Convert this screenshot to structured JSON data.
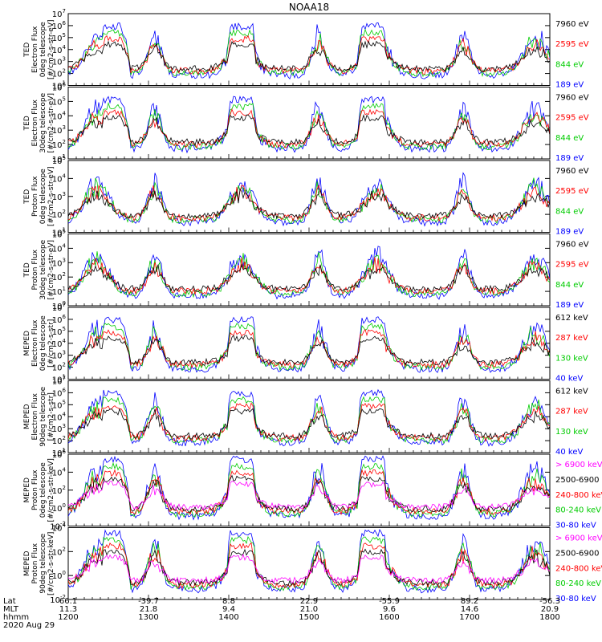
{
  "title": "NOAA18",
  "date_label": "2020 Aug 29",
  "colors": {
    "blue": "#0000ff",
    "red": "#ff0000",
    "green": "#00cc00",
    "black": "#000000",
    "magenta": "#ff00ff"
  },
  "axis_footer": {
    "row_labels": [
      "Lat",
      "MLT",
      "hhmm"
    ],
    "ticks": [
      {
        "lat": "66.1",
        "mlt": "11.3",
        "hhmm": "1200"
      },
      {
        "lat": "-39.7",
        "mlt": "21.8",
        "hhmm": "1300"
      },
      {
        "lat": "8.8",
        "mlt": "9.4",
        "hhmm": "1400"
      },
      {
        "lat": "22.9",
        "mlt": "21.0",
        "hhmm": "1500"
      },
      {
        "lat": "-55.9",
        "mlt": "9.6",
        "hhmm": "1600"
      },
      {
        "lat": "89.2",
        "mlt": "14.6",
        "hhmm": "1700"
      },
      {
        "lat": "-56.3",
        "mlt": "20.9",
        "hhmm": "1800"
      }
    ]
  },
  "chart_data": [
    {
      "type": "line",
      "ylabel": [
        "TED",
        "Electron Flux",
        "0deg telescope",
        "[#/cm2-s-str-eV]"
      ],
      "yticks": [
        "10^1",
        "10^2",
        "10^3",
        "10^4",
        "10^5",
        "10^6",
        "10^7"
      ],
      "ylog": true,
      "legend": [
        {
          "label": "7960 eV",
          "color": "black"
        },
        {
          "label": "2595 eV",
          "color": "red"
        },
        {
          "label": "844 eV",
          "color": "green"
        },
        {
          "label": "189 eV",
          "color": "blue"
        }
      ]
    },
    {
      "type": "line",
      "ylabel": [
        "TED",
        "Electron Flux",
        "30deg telescope",
        "[#/cm2-s-str-eV]"
      ],
      "yticks": [
        "10^1",
        "10^2",
        "10^3",
        "10^4",
        "10^5",
        "10^6"
      ],
      "ylog": true,
      "legend": [
        {
          "label": "7960 eV",
          "color": "black"
        },
        {
          "label": "2595 eV",
          "color": "red"
        },
        {
          "label": "844 eV",
          "color": "green"
        },
        {
          "label": "189 eV",
          "color": "blue"
        }
      ]
    },
    {
      "type": "line",
      "ylabel": [
        "TED",
        "Proton Flux",
        "0deg telescope",
        "[#/cm2-s-str-eV]"
      ],
      "yticks": [
        "10^1",
        "10^2",
        "10^3",
        "10^4",
        "10^5"
      ],
      "ylog": true,
      "legend": [
        {
          "label": "7960 eV",
          "color": "black"
        },
        {
          "label": "2595 eV",
          "color": "red"
        },
        {
          "label": "844 eV",
          "color": "green"
        },
        {
          "label": "189 eV",
          "color": "blue"
        }
      ]
    },
    {
      "type": "line",
      "ylabel": [
        "TED",
        "Proton Flux",
        "30deg telescope",
        "[#/cm2-s-str-eV]"
      ],
      "yticks": [
        "10^0",
        "10^1",
        "10^2",
        "10^3",
        "10^4",
        "10^5"
      ],
      "ylog": true,
      "legend": [
        {
          "label": "7960 eV",
          "color": "black"
        },
        {
          "label": "2595 eV",
          "color": "red"
        },
        {
          "label": "844 eV",
          "color": "green"
        },
        {
          "label": "189 eV",
          "color": "blue"
        }
      ]
    },
    {
      "type": "line",
      "ylabel": [
        "MEPED",
        "Electron Flux",
        "0deg telescope",
        "[#/cm2-s-str]"
      ],
      "yticks": [
        "10^1",
        "10^2",
        "10^3",
        "10^4",
        "10^5",
        "10^6",
        "10^7"
      ],
      "ylog": true,
      "legend": [
        {
          "label": "612 keV",
          "color": "black"
        },
        {
          "label": "287 keV",
          "color": "red"
        },
        {
          "label": "130 keV",
          "color": "green"
        },
        {
          "label": "40 keV",
          "color": "blue"
        }
      ]
    },
    {
      "type": "line",
      "ylabel": [
        "MEPED",
        "Electron Flux",
        "90deg telescope",
        "[#/cm2-s-str]"
      ],
      "yticks": [
        "10^1",
        "10^2",
        "10^3",
        "10^4",
        "10^5",
        "10^6",
        "10^7"
      ],
      "ylog": true,
      "legend": [
        {
          "label": "612 keV",
          "color": "black"
        },
        {
          "label": "287 keV",
          "color": "red"
        },
        {
          "label": "130 keV",
          "color": "green"
        },
        {
          "label": "40 keV",
          "color": "blue"
        }
      ]
    },
    {
      "type": "line",
      "ylabel": [
        "MEPED",
        "Proton Flux",
        "0deg telescope",
        "[#/cm2-s-str-keV]"
      ],
      "yticks": [
        "10^-2",
        "10^0",
        "10^2",
        "10^4",
        "10^6"
      ],
      "ylog": true,
      "legend": [
        {
          "label": "> 6900 keV",
          "color": "magenta"
        },
        {
          "label": "2500-6900",
          "color": "black"
        },
        {
          "label": "240-800 keV",
          "color": "red"
        },
        {
          "label": "80-240 keV",
          "color": "green"
        },
        {
          "label": "30-80 keV",
          "color": "blue"
        }
      ]
    },
    {
      "type": "line",
      "ylabel": [
        "MEPED",
        "Proton Flux",
        "90deg telescope",
        "[#/cm2-s-str-keV]"
      ],
      "yticks": [
        "10^-2",
        "10^0",
        "10^2",
        "10^4"
      ],
      "ylog": true,
      "legend": [
        {
          "label": "> 6900 keV",
          "color": "magenta"
        },
        {
          "label": "2500-6900",
          "color": "black"
        },
        {
          "label": "240-800 keV",
          "color": "red"
        },
        {
          "label": "80-240 keV",
          "color": "green"
        },
        {
          "label": "30-80 keV",
          "color": "blue"
        }
      ]
    }
  ]
}
